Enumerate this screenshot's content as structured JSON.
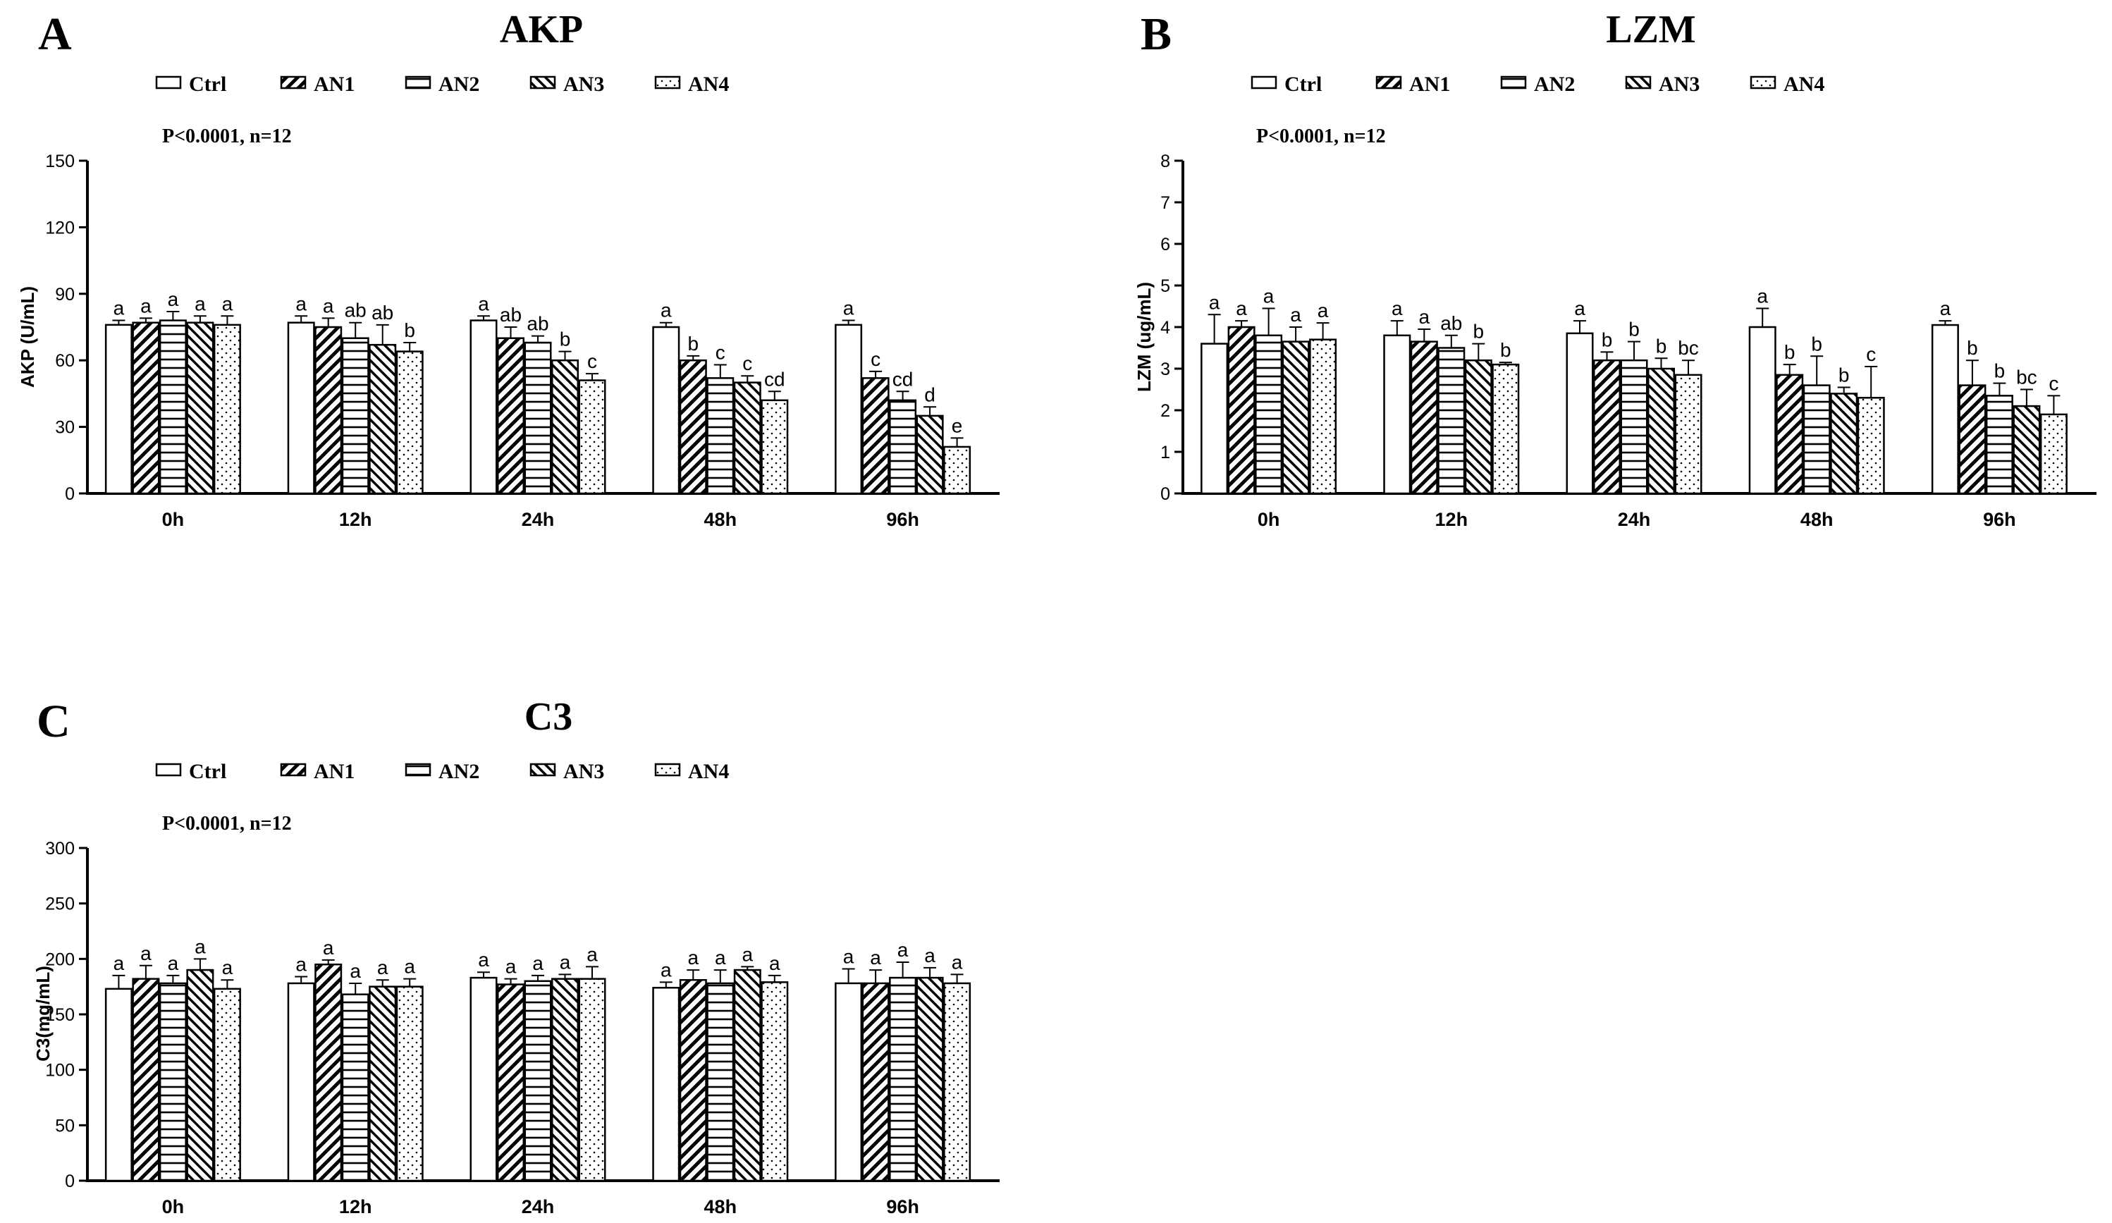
{
  "chart_data": [
    {
      "type": "bar",
      "panel_label": "A",
      "title": "AKP",
      "annotation": "P<0.0001, n=12",
      "ylabel": "AKP (U/mL)",
      "xlabel": "",
      "ylim": [
        0,
        150
      ],
      "yticks": [
        0,
        30,
        60,
        90,
        120,
        150
      ],
      "grid": false,
      "legend_position": "top",
      "categories": [
        "0h",
        "12h",
        "24h",
        "48h",
        "96h"
      ],
      "series": [
        {
          "name": "Ctrl",
          "pattern": "open",
          "values": [
            76,
            77,
            78,
            75,
            76
          ],
          "errors": [
            2,
            3,
            2,
            2,
            2
          ],
          "labels": [
            "a",
            "a",
            "a",
            "a",
            "a"
          ]
        },
        {
          "name": "AN1",
          "pattern": "diagonal-up",
          "values": [
            77,
            75,
            70,
            60,
            52
          ],
          "errors": [
            2,
            4,
            5,
            2,
            3
          ],
          "labels": [
            "a",
            "a",
            "ab",
            "b",
            "c"
          ]
        },
        {
          "name": "AN2",
          "pattern": "horizontal",
          "values": [
            78,
            70,
            68,
            52,
            42
          ],
          "errors": [
            4,
            7,
            3,
            6,
            4
          ],
          "labels": [
            "a",
            "ab",
            "ab",
            "c",
            "cd"
          ]
        },
        {
          "name": "AN3",
          "pattern": "diagonal-down",
          "values": [
            77,
            67,
            60,
            50,
            35
          ],
          "errors": [
            3,
            9,
            4,
            3,
            4
          ],
          "labels": [
            "a",
            "ab",
            "b",
            "c",
            "d"
          ]
        },
        {
          "name": "AN4",
          "pattern": "dots",
          "values": [
            76,
            64,
            51,
            42,
            21
          ],
          "errors": [
            4,
            4,
            3,
            4,
            4
          ],
          "labels": [
            "a",
            "b",
            "c",
            "cd",
            "e"
          ]
        }
      ]
    },
    {
      "type": "bar",
      "panel_label": "B",
      "title": "LZM",
      "annotation": "P<0.0001, n=12",
      "ylabel": "LZM (ug/mL)",
      "xlabel": "",
      "ylim": [
        0,
        8
      ],
      "yticks": [
        0,
        1,
        2,
        3,
        4,
        5,
        6,
        7,
        8
      ],
      "grid": false,
      "legend_position": "top",
      "categories": [
        "0h",
        "12h",
        "24h",
        "48h",
        "96h"
      ],
      "series": [
        {
          "name": "Ctrl",
          "pattern": "open",
          "values": [
            3.6,
            3.8,
            3.85,
            4.0,
            4.05
          ],
          "errors": [
            0.7,
            0.35,
            0.3,
            0.45,
            0.1
          ],
          "labels": [
            "a",
            "a",
            "a",
            "a",
            "a"
          ]
        },
        {
          "name": "AN1",
          "pattern": "diagonal-up",
          "values": [
            4.0,
            3.65,
            3.2,
            2.85,
            2.6
          ],
          "errors": [
            0.15,
            0.3,
            0.2,
            0.25,
            0.6
          ],
          "labels": [
            "a",
            "a",
            "b",
            "b",
            "b"
          ]
        },
        {
          "name": "AN2",
          "pattern": "horizontal",
          "values": [
            3.8,
            3.5,
            3.2,
            2.6,
            2.35
          ],
          "errors": [
            0.65,
            0.3,
            0.45,
            0.7,
            0.3
          ],
          "labels": [
            "a",
            "ab",
            "b",
            "b",
            "b"
          ]
        },
        {
          "name": "AN3",
          "pattern": "diagonal-down",
          "values": [
            3.65,
            3.2,
            3.0,
            2.4,
            2.1
          ],
          "errors": [
            0.35,
            0.4,
            0.25,
            0.15,
            0.4
          ],
          "labels": [
            "a",
            "b",
            "b",
            "b",
            "bc"
          ]
        },
        {
          "name": "AN4",
          "pattern": "dots",
          "values": [
            3.7,
            3.1,
            2.85,
            2.3,
            1.9
          ],
          "errors": [
            0.4,
            0.05,
            0.35,
            0.75,
            0.45
          ],
          "labels": [
            "a",
            "b",
            "bc",
            "c",
            "c"
          ]
        }
      ]
    },
    {
      "type": "bar",
      "panel_label": "C",
      "title": "C3",
      "annotation": "P<0.0001, n=12",
      "ylabel": "C3(mg/mL)",
      "xlabel": "",
      "ylim": [
        0,
        300
      ],
      "yticks": [
        0,
        50,
        100,
        150,
        200,
        250,
        300
      ],
      "grid": false,
      "legend_position": "top",
      "categories": [
        "0h",
        "12h",
        "24h",
        "48h",
        "96h"
      ],
      "series": [
        {
          "name": "Ctrl",
          "pattern": "open",
          "values": [
            173,
            178,
            183,
            174,
            178
          ],
          "errors": [
            12,
            6,
            5,
            5,
            13
          ],
          "labels": [
            "a",
            "a",
            "a",
            "a",
            "a"
          ]
        },
        {
          "name": "AN1",
          "pattern": "diagonal-up",
          "values": [
            182,
            195,
            177,
            181,
            178
          ],
          "errors": [
            12,
            4,
            5,
            9,
            12
          ],
          "labels": [
            "a",
            "a",
            "a",
            "a",
            "a"
          ]
        },
        {
          "name": "AN2",
          "pattern": "horizontal",
          "values": [
            178,
            168,
            180,
            178,
            183
          ],
          "errors": [
            7,
            10,
            5,
            12,
            14
          ],
          "labels": [
            "a",
            "a",
            "a",
            "a",
            "a"
          ]
        },
        {
          "name": "AN3",
          "pattern": "diagonal-down",
          "values": [
            190,
            175,
            182,
            190,
            183
          ],
          "errors": [
            10,
            6,
            4,
            3,
            9
          ],
          "labels": [
            "a",
            "a",
            "a",
            "a",
            "a"
          ]
        },
        {
          "name": "AN4",
          "pattern": "dots",
          "values": [
            173,
            175,
            182,
            179,
            178
          ],
          "errors": [
            8,
            7,
            11,
            6,
            8
          ],
          "labels": [
            "a",
            "a",
            "a",
            "a",
            "a"
          ]
        }
      ]
    }
  ]
}
